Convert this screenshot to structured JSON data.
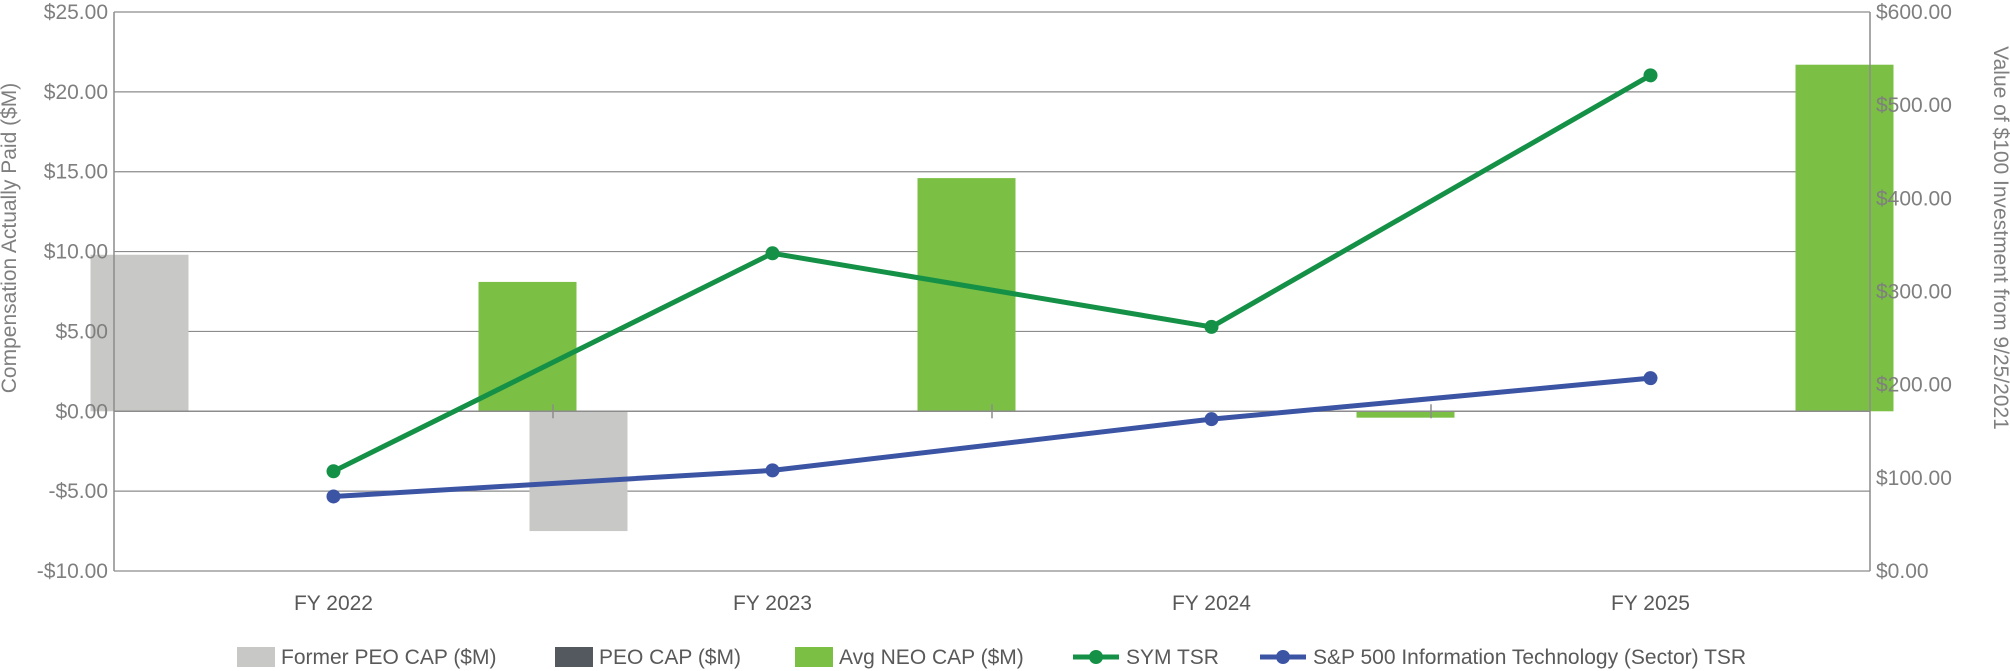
{
  "chart_data": {
    "type": "bar+line",
    "categories": [
      "FY 2022",
      "FY 2023",
      "FY 2024",
      "FY 2025"
    ],
    "left_axis": {
      "label": "Compensation Actually Paid ($M)",
      "range": [
        -10,
        25
      ],
      "ticks": [
        "-$10.00",
        "-$5.00",
        "$0.00",
        "$5.00",
        "$10.00",
        "$15.00",
        "$20.00",
        "$25.00"
      ],
      "tick_values": [
        -10,
        -5,
        0,
        5,
        10,
        15,
        20,
        25
      ]
    },
    "right_axis": {
      "label": "Value of $100 Investment from 9/25/2021",
      "range": [
        0,
        600
      ],
      "ticks": [
        "$0.00",
        "$100.00",
        "$200.00",
        "$300.00",
        "$400.00",
        "$500.00",
        "$600.00"
      ],
      "tick_values": [
        0,
        100,
        200,
        300,
        400,
        500,
        600
      ]
    },
    "bar_series": [
      {
        "name": "Former PEO CAP ($M)",
        "color": "#c8c8c6",
        "values": [
          9.8,
          -7.5,
          null,
          null
        ]
      },
      {
        "name": "PEO CAP ($M)",
        "color": "#54595f",
        "values": [
          null,
          null,
          null,
          null
        ]
      },
      {
        "name": "Avg NEO CAP ($M)",
        "color": "#7bbf45",
        "values": [
          8.1,
          14.6,
          -0.4,
          21.7
        ]
      }
    ],
    "line_series": [
      {
        "name": "SYM TSR",
        "color": "#149146",
        "values": [
          107,
          341,
          262,
          532
        ]
      },
      {
        "name": "S&P 500 Information Technology (Sector) TSR",
        "color": "#3c54a4",
        "values": [
          80,
          108,
          163,
          207
        ]
      }
    ],
    "grid": true,
    "legend": "bottom"
  }
}
